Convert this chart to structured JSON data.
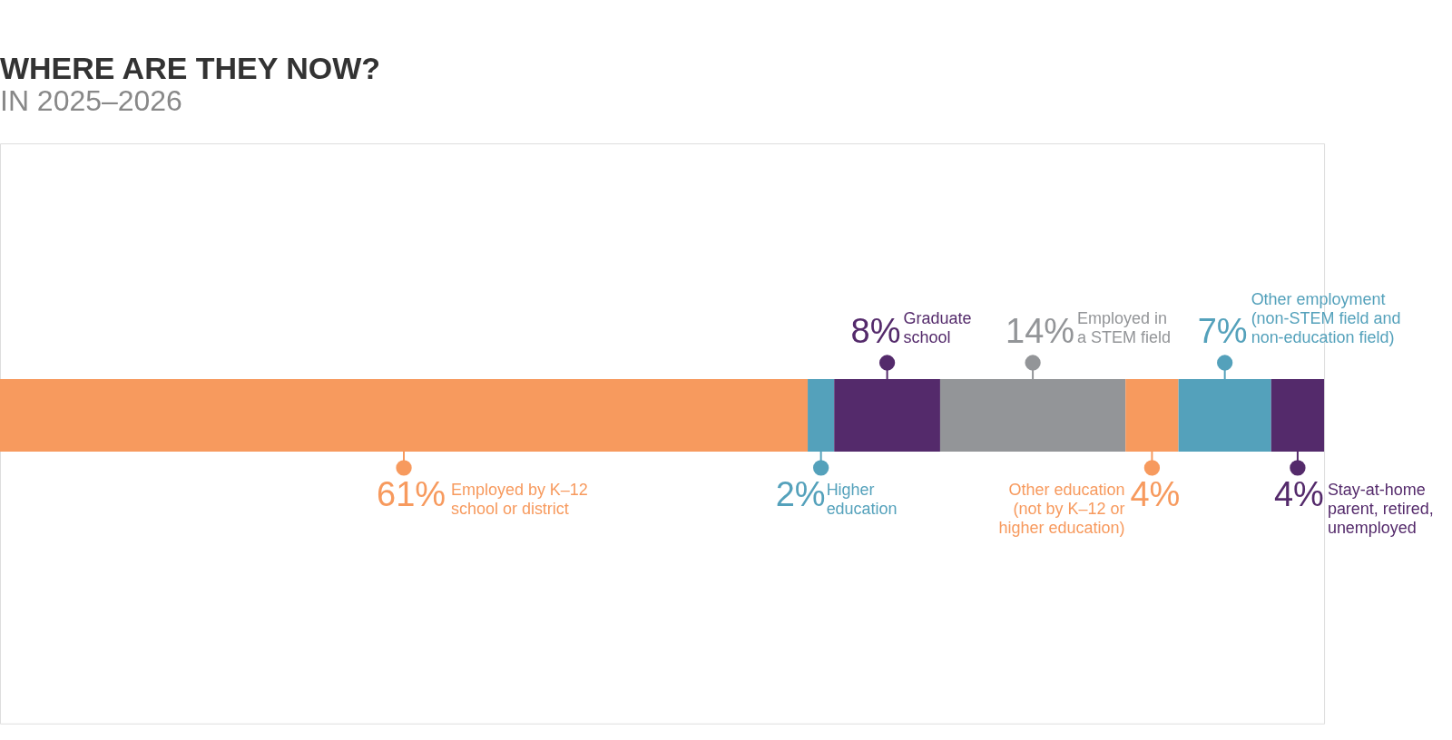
{
  "chart_data": {
    "type": "bar",
    "title": "WHERE ARE THEY NOW?",
    "subtitle": "IN 2025–2026",
    "orientation": "horizontal",
    "stacked": true,
    "tick_labels": false,
    "categories": [
      null
    ],
    "series": [
      {
        "name": "Employed by K–12\nschool or district",
        "color": "#f79a5e",
        "values": [
          61
        ],
        "value_labels": [
          "61%"
        ]
      },
      {
        "name": "Higher\neducation",
        "color": "#54a1bb",
        "values": [
          2
        ],
        "value_labels": [
          "2%"
        ]
      },
      {
        "name": "Graduate\nschool",
        "color": "#542a6b",
        "values": [
          8
        ],
        "value_labels": [
          "8%"
        ]
      },
      {
        "name": "Employed in\na STEM field",
        "color": "#939598",
        "values": [
          14
        ],
        "value_labels": [
          "14%"
        ]
      },
      {
        "name": "Other education\n(not by K–12 or\nhigher education)",
        "color": "#f79a5e",
        "values": [
          4
        ],
        "value_labels": [
          "4%"
        ]
      },
      {
        "name": "Other employment\n(non-STEM field and\nnon-education field)",
        "color": "#54a1bb",
        "values": [
          7
        ],
        "value_labels": [
          "7%"
        ]
      },
      {
        "name": "Stay-at-home\nparent, retired,\nunemployed",
        "color": "#542a6b",
        "values": [
          4
        ],
        "value_labels": [
          "4%"
        ]
      }
    ]
  }
}
